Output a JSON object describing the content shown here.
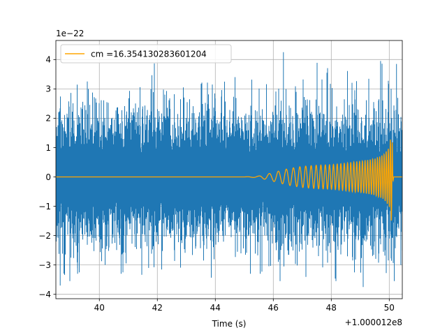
{
  "chart_data": {
    "type": "line",
    "title": "",
    "xlabel": "Time (s)",
    "ylabel": "",
    "y_scale_label": "1e−22",
    "x_offset_label": "+1.000012e8",
    "xlim": [
      38.5,
      50.45
    ],
    "ylim": [
      -4.15,
      4.65
    ],
    "x_ticks": [
      40,
      42,
      44,
      46,
      48,
      50
    ],
    "y_ticks": [
      -4,
      -3,
      -2,
      -1,
      0,
      1,
      2,
      3,
      4
    ],
    "grid": true,
    "legend_position": "top-left",
    "series": [
      {
        "name": "",
        "color": "#1f77b4",
        "description": "noisy strain data",
        "x_range": [
          38.5,
          50.45
        ],
        "typical_amplitude": 1.5,
        "peak_max": 4.25,
        "peak_max_x": 46.35,
        "peak_min": -3.7,
        "peak_min_x": 38.65
      },
      {
        "name": "cm =16.354130283601204",
        "color": "#ffa500",
        "description": "chirp waveform template",
        "envelope": [
          [
            38.5,
            0.0
          ],
          [
            45.0,
            0.0
          ],
          [
            45.5,
            0.03
          ],
          [
            46.0,
            0.15
          ],
          [
            46.5,
            0.28
          ],
          [
            47.0,
            0.36
          ],
          [
            47.5,
            0.4
          ],
          [
            48.0,
            0.42
          ],
          [
            48.5,
            0.47
          ],
          [
            49.0,
            0.53
          ],
          [
            49.5,
            0.62
          ],
          [
            49.8,
            0.75
          ],
          [
            50.0,
            1.0
          ],
          [
            50.07,
            1.5
          ],
          [
            50.1,
            1.45
          ],
          [
            50.12,
            0.3
          ],
          [
            50.15,
            0.0
          ],
          [
            50.45,
            0.0
          ]
        ]
      }
    ]
  }
}
